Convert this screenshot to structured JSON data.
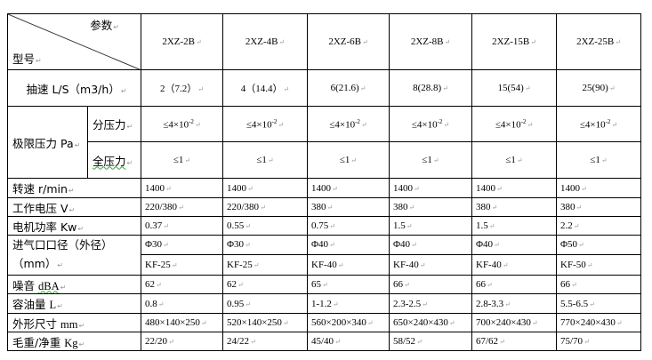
{
  "header": {
    "param_label": "参数",
    "model_label": "型号"
  },
  "models": [
    "2XZ-2B",
    "2XZ-4B",
    "2XZ-6B",
    "2XZ-8B",
    "2XZ-15B",
    "2XZ-25B"
  ],
  "pumping_speed": {
    "label": "抽速  L/S（m3/h）",
    "values": [
      "2（7.2）",
      "4（14.4）",
      "6(21.6)",
      "8(28.8)",
      "15(54)",
      "25(90)"
    ]
  },
  "ultimate_pressure": {
    "label": "极限压力 Pa",
    "partial": {
      "label": "分压力",
      "values": [
        "≤4×10",
        "≤4×10",
        "≤4×10",
        "≤4×10",
        "≤4×10",
        "≤4×10"
      ],
      "exponent": "-2"
    },
    "total": {
      "label": "全压力",
      "values": [
        "≤1",
        "≤1",
        "≤1",
        "≤1",
        "≤1",
        "≤1"
      ]
    }
  },
  "rows": [
    {
      "label": "转速 r/min",
      "values": [
        "1400",
        "1400",
        "1400",
        "1400",
        "1400",
        "1400"
      ]
    },
    {
      "label": "工作电压 V",
      "values": [
        "220/380",
        "220/380",
        "380",
        "380",
        "380",
        "380"
      ]
    },
    {
      "label": "电机功率 Kw",
      "values": [
        "0.37",
        "0.55",
        "0.75",
        "1.5",
        "1.5",
        "2.2"
      ]
    }
  ],
  "inlet": {
    "label_line1": "进气口口径（外径）",
    "label_line2": "（mm）",
    "diameter": [
      "Φ30",
      "Φ30",
      "Φ40",
      "Φ40",
      "Φ40",
      "Φ50"
    ],
    "flange": [
      "KF-25",
      "KF-25",
      "KF-40",
      "KF-40",
      "KF-40",
      "KF-50"
    ]
  },
  "rows2": [
    {
      "label_cn": "噪音 ",
      "label_unit": "dBA",
      "values": [
        "62",
        "62",
        "65",
        "66",
        "66",
        "66"
      ]
    },
    {
      "label_cn": "容油量  ",
      "label_unit": "L",
      "values": [
        "0.8",
        "0.95",
        "1-1.2",
        "2.3-2.5",
        "2.8-3.3",
        "5.5-6.5"
      ]
    },
    {
      "label_cn": "外形尺寸 ",
      "label_unit": "mm",
      "values": [
        "480×140×250",
        "520×140×250",
        "560×200×340",
        "650×240×430",
        "700×240×430",
        "770×240×430"
      ]
    },
    {
      "label_cn": "毛重/净重 ",
      "label_unit": "Kg",
      "values": [
        "22/20",
        "24/22",
        "45/40",
        "58/52",
        "67/62",
        "75/70"
      ]
    }
  ]
}
